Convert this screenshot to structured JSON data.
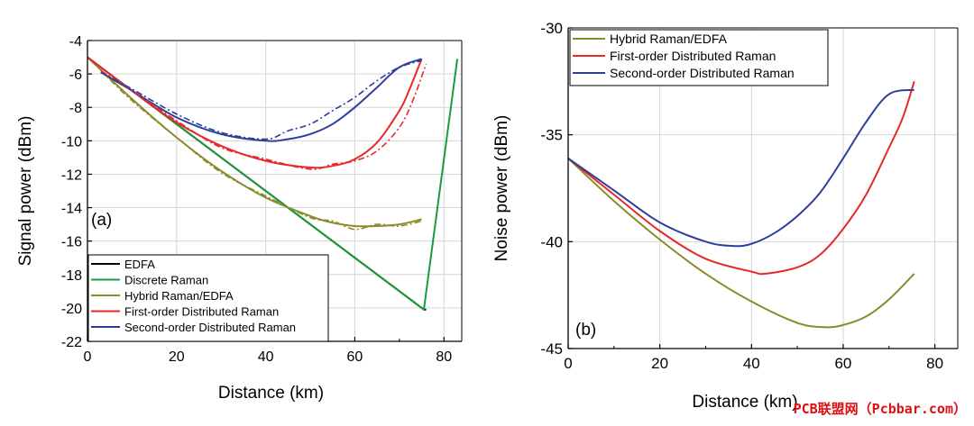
{
  "chart_data": [
    {
      "type": "line",
      "panel_label": "(a)",
      "xlabel": "Distance (km)",
      "ylabel": "Signal power (dBm)",
      "xlim": [
        0,
        84
      ],
      "ylim": [
        -22,
        -4
      ],
      "xticks": [
        0,
        20,
        40,
        60,
        80
      ],
      "yticks": [
        -22,
        -20,
        -18,
        -16,
        -14,
        -12,
        -10,
        -8,
        -6,
        -4
      ],
      "grid": true,
      "legend_position": "bottom-left",
      "legend": [
        "EDFA",
        "Discrete Raman",
        "Hybrid Raman/EDFA",
        "First-order Distributed Raman",
        "Second-order Distributed Raman"
      ],
      "series": [
        {
          "name": "EDFA",
          "color": "#000000",
          "style": "solid",
          "x": [
            0,
            75.5,
            76
          ],
          "y": [
            -5,
            -20.1,
            -20.1
          ]
        },
        {
          "name": "Discrete Raman",
          "color": "#1a9a3a",
          "style": "solid",
          "x": [
            0,
            75.5,
            83
          ],
          "y": [
            -5,
            -20.1,
            -5.1
          ]
        },
        {
          "name": "Hybrid Raman/EDFA",
          "color": "#8b8b2a",
          "style": "solid",
          "x": [
            0,
            10,
            20,
            30,
            40,
            50,
            55,
            60,
            65,
            70,
            75
          ],
          "y": [
            -5,
            -7.5,
            -9.8,
            -11.8,
            -13.4,
            -14.5,
            -14.9,
            -15.1,
            -15.1,
            -15.0,
            -14.7
          ]
        },
        {
          "name": "First-order Distributed Raman",
          "color": "#e82828",
          "style": "solid",
          "x": [
            0,
            10,
            20,
            30,
            40,
            50,
            55,
            60,
            65,
            70,
            72,
            75
          ],
          "y": [
            -5,
            -7.0,
            -8.9,
            -10.3,
            -11.2,
            -11.6,
            -11.5,
            -11.1,
            -10.1,
            -8.2,
            -7.1,
            -5.1
          ]
        },
        {
          "name": "Second-order Distributed Raman",
          "color": "#2d3f9a",
          "style": "solid",
          "x": [
            3,
            10,
            20,
            30,
            40,
            45,
            50,
            55,
            60,
            65,
            70,
            75
          ],
          "y": [
            -5.9,
            -7.0,
            -8.6,
            -9.6,
            -10.0,
            -9.9,
            -9.6,
            -9.0,
            -8.0,
            -6.8,
            -5.6,
            -5.1
          ]
        },
        {
          "name": "Hybrid Raman/EDFA (measured)",
          "color": "#8b8b2a",
          "style": "dashdot",
          "x": [
            3,
            10,
            20,
            30,
            40,
            50,
            55,
            60,
            65,
            70,
            75
          ],
          "y": [
            -5.8,
            -7.6,
            -9.8,
            -11.9,
            -13.3,
            -14.6,
            -14.8,
            -15.3,
            -15.0,
            -15.1,
            -14.8
          ]
        },
        {
          "name": "First-order Distributed Raman (measured)",
          "color": "#e82828",
          "style": "dashdot",
          "x": [
            3,
            10,
            20,
            30,
            40,
            50,
            55,
            60,
            65,
            70,
            73,
            76
          ],
          "y": [
            -5.8,
            -7.0,
            -8.8,
            -10.4,
            -11.1,
            -11.7,
            -11.4,
            -11.2,
            -10.6,
            -9.2,
            -7.6,
            -5.4
          ]
        },
        {
          "name": "Second-order Distributed Raman (measured)",
          "color": "#2d3f9a",
          "style": "dashdot",
          "x": [
            3,
            10,
            20,
            30,
            40,
            45,
            50,
            55,
            60,
            65,
            70,
            75
          ],
          "y": [
            -5.9,
            -6.9,
            -8.4,
            -9.5,
            -9.9,
            -9.4,
            -9.0,
            -8.2,
            -7.4,
            -6.4,
            -5.6,
            -5.2
          ]
        }
      ]
    },
    {
      "type": "line",
      "panel_label": "(b)",
      "xlabel": "Distance (km)",
      "ylabel": "Noise power (dBm)",
      "xlim": [
        0,
        85
      ],
      "ylim": [
        -45,
        -30
      ],
      "xticks": [
        0,
        20,
        40,
        60,
        80
      ],
      "yticks": [
        -45,
        -40,
        -35,
        -30
      ],
      "grid": true,
      "legend_position": "top-left",
      "legend": [
        "Hybrid Raman/EDFA",
        "First-order Distributed Raman",
        "Second-order Distributed Raman"
      ],
      "series": [
        {
          "name": "Hybrid Raman/EDFA",
          "color": "#8b8b2a",
          "x": [
            0,
            10,
            20,
            30,
            40,
            50,
            56,
            60,
            65,
            70,
            75.5
          ],
          "y": [
            -36.1,
            -38.1,
            -39.9,
            -41.5,
            -42.8,
            -43.8,
            -44.0,
            -43.9,
            -43.5,
            -42.7,
            -41.5
          ]
        },
        {
          "name": "First-order Distributed Raman",
          "color": "#e82828",
          "x": [
            0,
            10,
            20,
            30,
            40,
            43,
            50,
            55,
            60,
            65,
            70,
            73,
            75.5
          ],
          "y": [
            -36.1,
            -37.8,
            -39.5,
            -40.8,
            -41.4,
            -41.5,
            -41.2,
            -40.6,
            -39.4,
            -37.8,
            -35.6,
            -34.2,
            -32.5
          ]
        },
        {
          "name": "Second-order Distributed Raman",
          "color": "#2d3f9a",
          "x": [
            0,
            10,
            20,
            30,
            36,
            40,
            45,
            50,
            55,
            60,
            65,
            70,
            75.5
          ],
          "y": [
            -36.1,
            -37.6,
            -39.1,
            -40.0,
            -40.2,
            -40.1,
            -39.6,
            -38.8,
            -37.7,
            -36.1,
            -34.4,
            -33.1,
            -32.9
          ]
        }
      ]
    }
  ],
  "watermark": "PCB联盟网（Pcbbar.com）"
}
